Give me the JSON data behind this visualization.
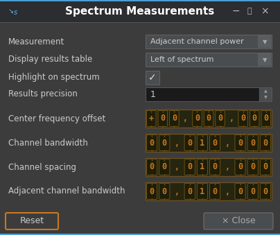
{
  "title": "Spectrum Measurements",
  "bg_color": "#3c3c3c",
  "titlebar_color": "#2b2d30",
  "title_text_color": "#ffffff",
  "label_color": "#cccccc",
  "dropdown_bg": "#4a4d50",
  "dropdown_text": "#cccccc",
  "spinbox_bg": "#1a1a1a",
  "spinbox_text": "#cccccc",
  "digit_bg": "#1a1a0a",
  "digit_color": "#c87820",
  "digit_cell_bg": "#252510",
  "digit_cell_border": "#8a5a10",
  "reset_btn_bg": "#3c3c3c",
  "reset_btn_border": "#c87820",
  "close_btn_bg": "#4a4d50",
  "close_btn_text": "#aaaaaa",
  "bottom_accent": "#4a9fd4",
  "labels": [
    "Measurement",
    "Display results table",
    "Highlight on spectrum",
    "Results precision",
    "Center frequency offset",
    "Channel bandwidth",
    "Channel spacing",
    "Adjacent channel bandwidth"
  ],
  "dropdown1_text": "Adjacent channel power",
  "dropdown2_text": "Left of spectrum",
  "spinbox_value": "1",
  "center_freq_digits": [
    "+",
    "0",
    "0",
    ",",
    "0",
    "0",
    "0",
    ",",
    "0",
    "0",
    "0"
  ],
  "channel_bw_digits": [
    "0",
    "0",
    ",",
    "0",
    "1",
    "0",
    ",",
    "0",
    "0",
    "0"
  ],
  "channel_spacing_digits": [
    "0",
    "0",
    ",",
    "0",
    "1",
    "0",
    ",",
    "0",
    "0",
    "0"
  ],
  "adj_channel_bw_digits": [
    "0",
    "0",
    ",",
    "0",
    "1",
    "0",
    ",",
    "0",
    "0",
    "0"
  ]
}
